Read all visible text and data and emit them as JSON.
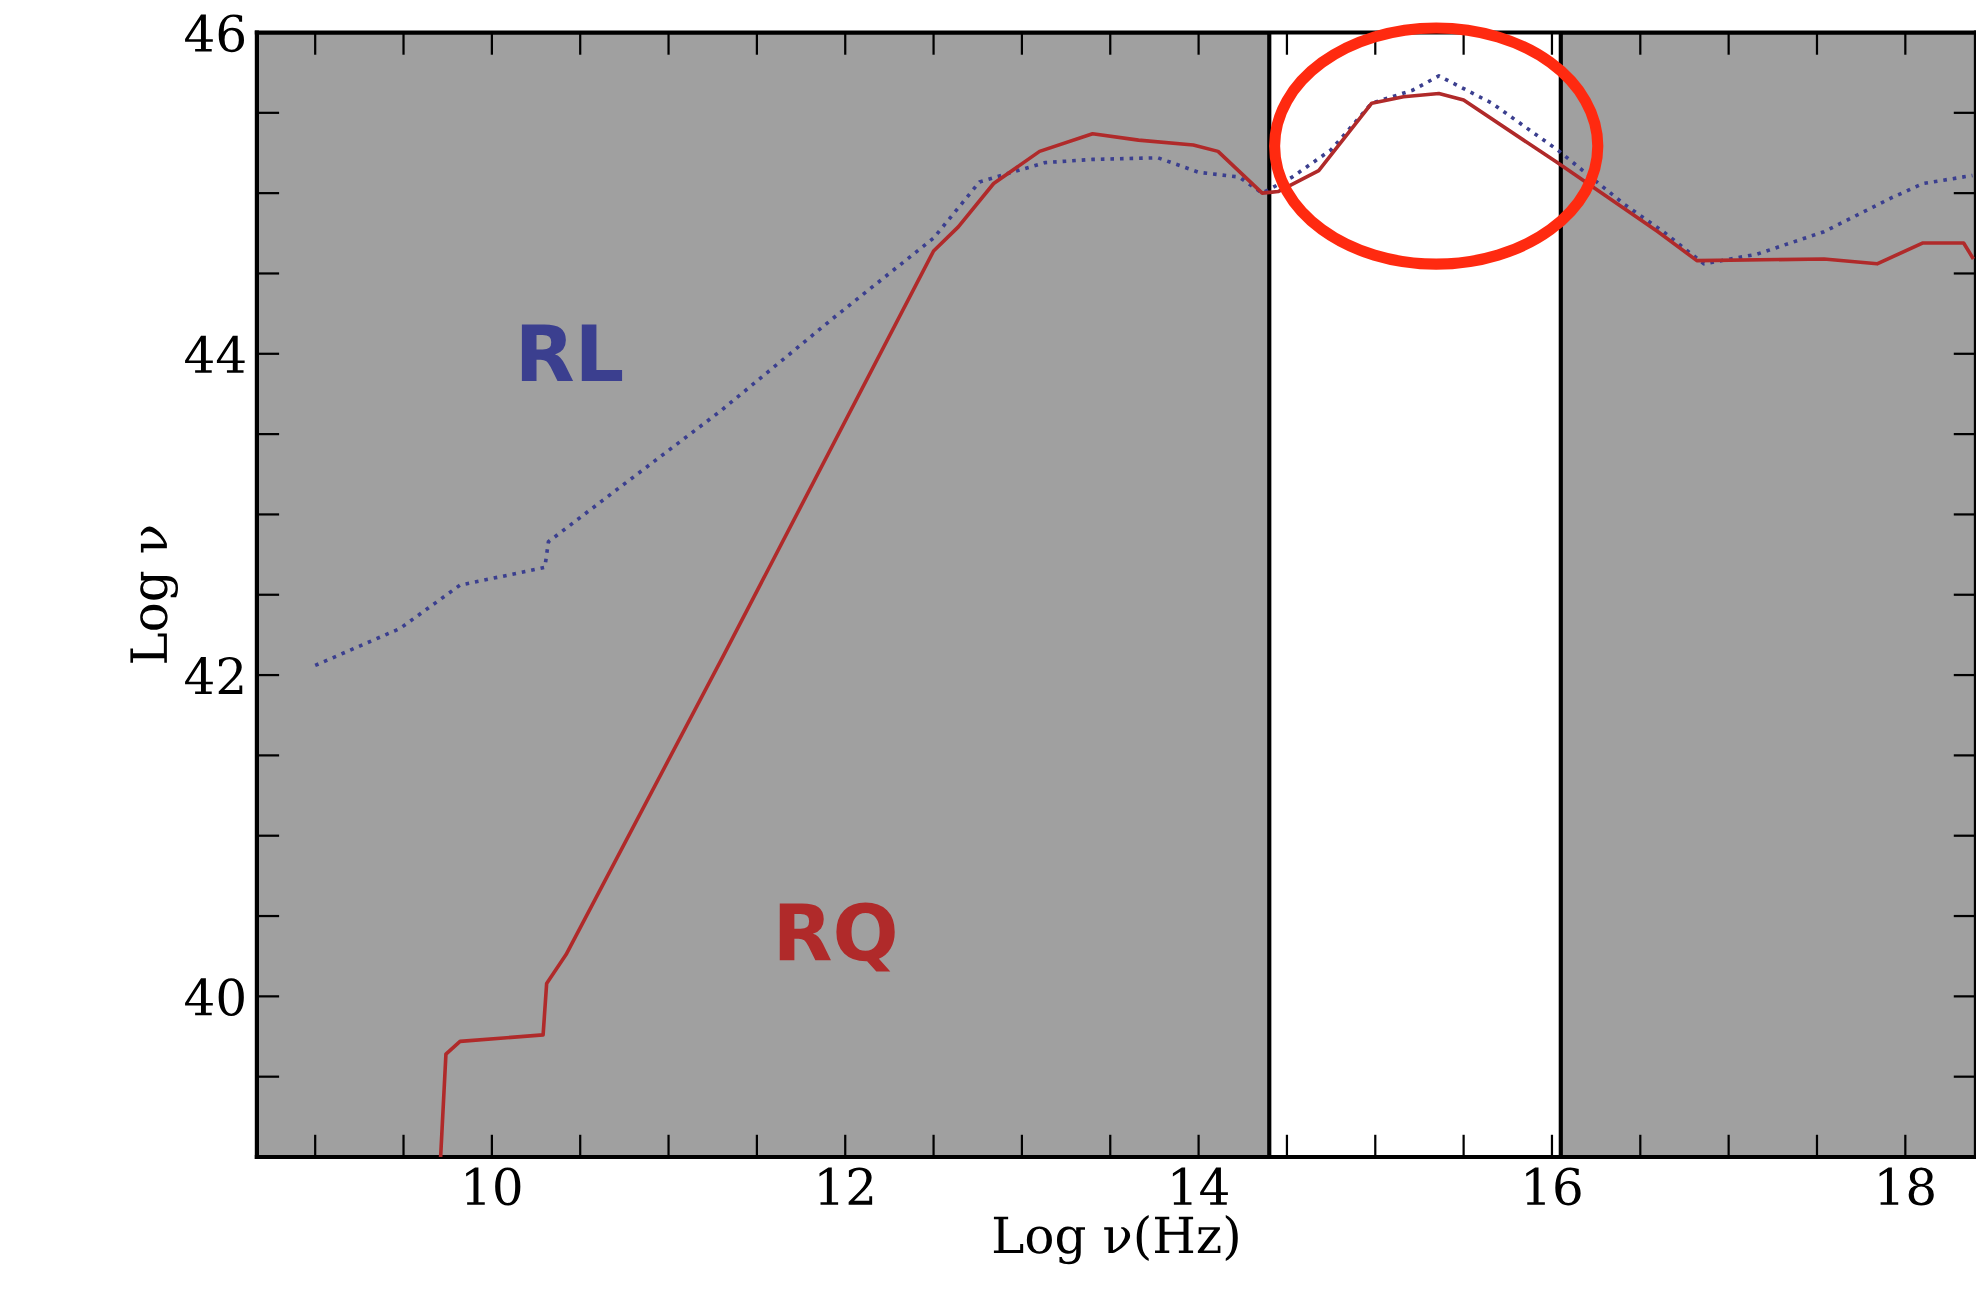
{
  "chart_data": {
    "type": "line",
    "xlabel": "Log ν(Hz)",
    "ylabel": "Log ν",
    "xlim": [
      8.67,
      18.4
    ],
    "ylim": [
      39,
      46
    ],
    "xticks": [
      {
        "value": 9,
        "label": null
      },
      {
        "value": 9.5,
        "label": null
      },
      10,
      {
        "value": 10.5,
        "label": null
      },
      {
        "value": 11,
        "label": null
      },
      {
        "value": 11.5,
        "label": null
      },
      12,
      {
        "value": 12.5,
        "label": null
      },
      {
        "value": 13,
        "label": null
      },
      {
        "value": 13.5,
        "label": null
      },
      14,
      {
        "value": 14.5,
        "label": null
      },
      {
        "value": 15,
        "label": null
      },
      {
        "value": 15.5,
        "label": null
      },
      16,
      {
        "value": 16.5,
        "label": null
      },
      {
        "value": 17,
        "label": null
      },
      {
        "value": 17.5,
        "label": null
      },
      18
    ],
    "yticks": [
      {
        "value": 39.5,
        "label": null
      },
      40,
      {
        "value": 40.5,
        "label": null
      },
      {
        "value": 41,
        "label": null
      },
      {
        "value": 41.5,
        "label": null
      },
      42,
      {
        "value": 42.5,
        "label": null
      },
      {
        "value": 43,
        "label": null
      },
      {
        "value": 43.5,
        "label": null
      },
      44,
      {
        "value": 44.5,
        "label": null
      },
      {
        "value": 45,
        "label": null
      },
      {
        "value": 45.5,
        "label": null
      },
      46
    ],
    "grid": false,
    "legend": false,
    "bands": [
      {
        "axis": "x",
        "from": 8.67,
        "to": 14.4,
        "color": "#a0a0a0"
      },
      {
        "axis": "x",
        "from": 16.05,
        "to": 18.4,
        "color": "#a0a0a0"
      }
    ],
    "series": [
      {
        "name": "RL",
        "color": "#3b3f8f",
        "line_style": "dotted",
        "x": [
          9.0,
          9.48,
          9.82,
          10.3,
          10.32,
          10.69,
          11.29,
          11.93,
          12.5,
          12.76,
          13.13,
          13.4,
          13.77,
          14.0,
          14.23,
          14.36,
          14.53,
          14.75,
          14.98,
          15.21,
          15.36,
          15.66,
          16.03,
          16.41,
          16.63,
          16.86,
          17.16,
          17.54,
          17.92,
          18.1,
          18.38
        ],
        "values": [
          42.06,
          42.29,
          42.56,
          42.67,
          42.83,
          43.14,
          43.64,
          44.22,
          44.72,
          45.07,
          45.19,
          45.21,
          45.22,
          45.13,
          45.1,
          45.0,
          45.1,
          45.27,
          45.56,
          45.64,
          45.73,
          45.56,
          45.27,
          44.93,
          44.76,
          44.56,
          44.62,
          44.76,
          44.97,
          45.06,
          45.11
        ]
      },
      {
        "name": "RQ",
        "color": "#b02a2a",
        "line_style": "solid",
        "x": [
          9.71,
          9.74,
          9.82,
          10.29,
          10.31,
          10.42,
          11.31,
          12.5,
          12.64,
          12.84,
          13.1,
          13.4,
          13.66,
          13.97,
          14.11,
          14.36,
          14.45,
          14.68,
          14.98,
          15.16,
          15.36,
          15.5,
          16.03,
          16.6,
          16.82,
          17.54,
          17.84,
          18.1,
          18.33,
          18.38
        ],
        "values": [
          39.0,
          39.64,
          39.72,
          39.76,
          40.08,
          40.26,
          42.12,
          44.64,
          44.79,
          45.06,
          45.26,
          45.37,
          45.33,
          45.3,
          45.26,
          45.0,
          45.01,
          45.14,
          45.56,
          45.6,
          45.62,
          45.58,
          45.19,
          44.76,
          44.58,
          44.59,
          44.56,
          44.69,
          44.69,
          44.6
        ]
      }
    ]
  }
}
